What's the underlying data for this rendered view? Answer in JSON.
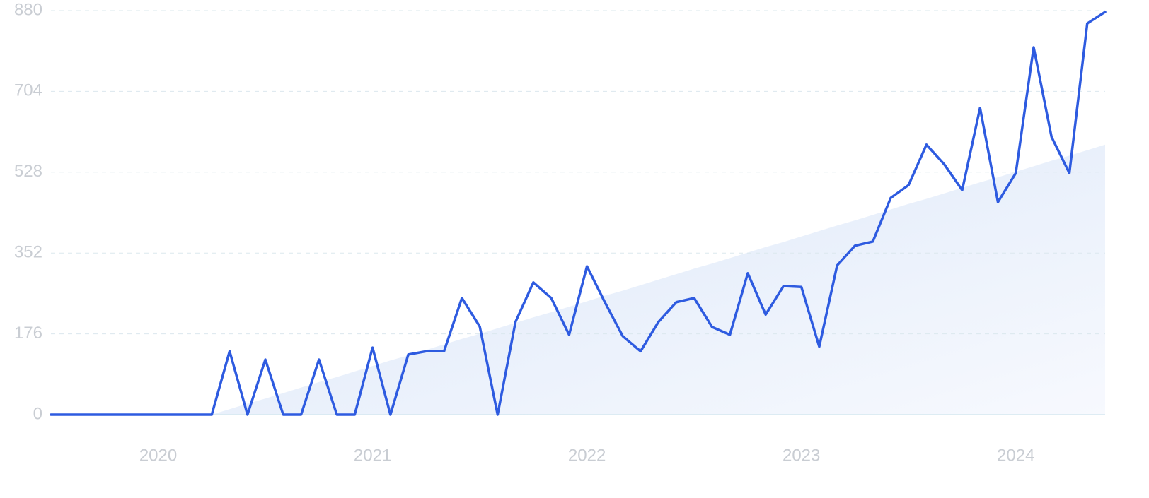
{
  "chart_data": {
    "type": "line",
    "categories": [
      null,
      null,
      null,
      null,
      null,
      null,
      "2020",
      null,
      null,
      null,
      null,
      null,
      null,
      null,
      null,
      null,
      null,
      null,
      "2021",
      null,
      null,
      null,
      null,
      null,
      null,
      null,
      null,
      null,
      null,
      null,
      "2022",
      null,
      null,
      null,
      null,
      null,
      null,
      null,
      null,
      null,
      null,
      null,
      "2023",
      null,
      null,
      null,
      null,
      null,
      null,
      null,
      null,
      null,
      null,
      null,
      "2024",
      null,
      null,
      null,
      null,
      null
    ],
    "series": [
      {
        "color": "#2e5be0",
        "values": [
          0,
          0,
          0,
          0,
          0,
          0,
          0,
          0,
          0,
          0,
          138,
          0,
          120,
          0,
          0,
          120,
          0,
          0,
          146,
          0,
          131,
          138,
          138,
          254,
          192,
          0,
          202,
          288,
          254,
          174,
          323,
          245,
          171,
          138,
          202,
          245,
          254,
          191,
          174,
          308,
          218,
          280,
          278,
          148,
          325,
          368,
          377,
          472,
          500,
          588,
          545,
          489,
          668,
          463,
          526,
          800,
          605,
          526,
          852,
          877
        ]
      }
    ],
    "trend": {
      "color": "#dce8f8",
      "values": [
        null,
        null,
        null,
        null,
        null,
        null,
        null,
        null,
        null,
        0,
        12,
        24,
        35,
        47,
        59,
        71,
        82,
        94,
        106,
        118,
        129,
        141,
        153,
        165,
        176,
        188,
        200,
        212,
        223,
        235,
        247,
        259,
        270,
        282,
        294,
        306,
        318,
        329,
        341,
        353,
        365,
        376,
        388,
        400,
        412,
        423,
        435,
        447,
        459,
        470,
        482,
        494,
        506,
        517,
        529,
        541,
        553,
        564,
        576,
        588
      ]
    },
    "ylim": [
      0,
      880
    ],
    "yticks": [
      0,
      176,
      352,
      528,
      704,
      880
    ],
    "grid": true
  }
}
